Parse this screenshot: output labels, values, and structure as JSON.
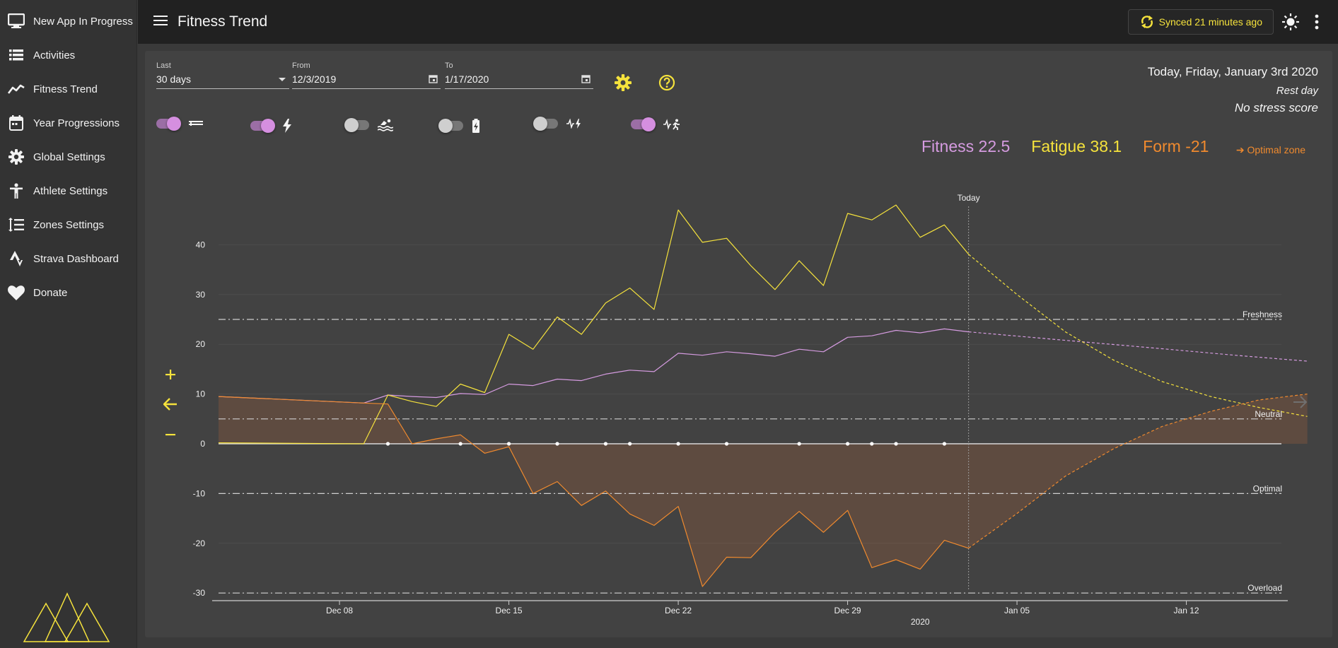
{
  "sidebar": {
    "items": [
      {
        "label": "New App In Progress",
        "icon": "monitor-icon"
      },
      {
        "label": "Activities",
        "icon": "list-icon"
      },
      {
        "label": "Fitness Trend",
        "icon": "trending-line-icon"
      },
      {
        "label": "Year Progressions",
        "icon": "calendar-icon"
      },
      {
        "label": "Global Settings",
        "icon": "gear-icon"
      },
      {
        "label": "Athlete Settings",
        "icon": "person-icon"
      },
      {
        "label": "Zones Settings",
        "icon": "zones-icon"
      },
      {
        "label": "Strava Dashboard",
        "icon": "strava-icon"
      },
      {
        "label": "Donate",
        "icon": "heart-icon"
      }
    ]
  },
  "header": {
    "title": "Fitness Trend",
    "sync_label": "Synced 21 minutes ago"
  },
  "filters": {
    "last_label": "Last",
    "last_value": "30 days",
    "from_label": "From",
    "from_value": "12/3/2019",
    "to_label": "To",
    "to_value": "1/17/2020"
  },
  "toggles": [
    {
      "name": "training-zones",
      "on": true,
      "icon": "zones-bars-icon"
    },
    {
      "name": "power-meter",
      "on": true,
      "icon": "lightning-icon"
    },
    {
      "name": "swim-stress",
      "on": false,
      "icon": "swim-icon"
    },
    {
      "name": "eleventh-hour",
      "on": false,
      "icon": "battery-bolt-icon"
    },
    {
      "name": "est-power",
      "on": false,
      "icon": "heart-rate-bolt-icon"
    },
    {
      "name": "est-running",
      "on": true,
      "icon": "heart-rate-runner-icon"
    }
  ],
  "status": {
    "today": "Today, Friday, January 3rd 2020",
    "rest_day": "Rest day",
    "stress": "No stress score"
  },
  "metrics": {
    "fitness": "Fitness 22.5",
    "fatigue": "Fatigue 38.1",
    "form": "Form -21",
    "optimal_zone": "➔ Optimal zone"
  },
  "colors": {
    "fitness": "#d59be0",
    "fatigue": "#f5e23c",
    "form": "#f08a2e",
    "accent": "#f5e23c"
  },
  "chart_data": {
    "type": "line",
    "title": "",
    "xlabel": "2020",
    "ylabel": "",
    "ylim": [
      -30,
      50
    ],
    "y_ticks": [
      40,
      30,
      20,
      10,
      0,
      -10,
      -20,
      -30
    ],
    "x_ticks": [
      {
        "date": "2019-12-08",
        "label": "Dec 08"
      },
      {
        "date": "2019-12-15",
        "label": "Dec 15"
      },
      {
        "date": "2019-12-22",
        "label": "Dec 22"
      },
      {
        "date": "2019-12-29",
        "label": "Dec 29"
      },
      {
        "date": "2020-01-05",
        "label": "Jan 05"
      },
      {
        "date": "2020-01-12",
        "label": "Jan 12"
      }
    ],
    "x_range": [
      "2019-12-03",
      "2020-01-17"
    ],
    "today_date": "2020-01-03",
    "today_label": "Today",
    "zones": [
      {
        "label": "Freshness",
        "value": 25
      },
      {
        "label": "Neutral",
        "value": 5
      },
      {
        "label": "Optimal",
        "value": -10
      },
      {
        "label": "Overload",
        "value": -30
      }
    ],
    "activity_days": [
      "2019-12-10",
      "2019-12-13",
      "2019-12-15",
      "2019-12-17",
      "2019-12-19",
      "2019-12-20",
      "2019-12-22",
      "2019-12-24",
      "2019-12-27",
      "2019-12-29",
      "2019-12-30",
      "2019-12-31",
      "2020-01-02"
    ],
    "series": [
      {
        "name": "Fitness",
        "color": "#d59be0",
        "points": [
          [
            "2019-12-03",
            9.5
          ],
          [
            "2019-12-09",
            8.2
          ],
          [
            "2019-12-10",
            9.8
          ],
          [
            "2019-12-11",
            9.5
          ],
          [
            "2019-12-12",
            9.3
          ],
          [
            "2019-12-13",
            10.1
          ],
          [
            "2019-12-14",
            9.9
          ],
          [
            "2019-12-15",
            12.0
          ],
          [
            "2019-12-16",
            11.7
          ],
          [
            "2019-12-17",
            13.0
          ],
          [
            "2019-12-18",
            12.7
          ],
          [
            "2019-12-19",
            14.0
          ],
          [
            "2019-12-20",
            14.8
          ],
          [
            "2019-12-21",
            14.5
          ],
          [
            "2019-12-22",
            18.2
          ],
          [
            "2019-12-23",
            17.8
          ],
          [
            "2019-12-24",
            18.5
          ],
          [
            "2019-12-25",
            18.1
          ],
          [
            "2019-12-26",
            17.6
          ],
          [
            "2019-12-27",
            19.0
          ],
          [
            "2019-12-28",
            18.5
          ],
          [
            "2019-12-29",
            21.4
          ],
          [
            "2019-12-30",
            21.7
          ],
          [
            "2019-12-31",
            22.8
          ],
          [
            "2020-01-01",
            22.3
          ],
          [
            "2020-01-02",
            23.1
          ],
          [
            "2020-01-03",
            22.5
          ]
        ],
        "projection": [
          [
            "2020-01-03",
            22.5
          ],
          [
            "2020-01-07",
            20.8
          ],
          [
            "2020-01-11",
            19.1
          ],
          [
            "2020-01-14",
            17.8
          ],
          [
            "2020-01-17",
            16.6
          ]
        ]
      },
      {
        "name": "Fatigue",
        "color": "#f5e23c",
        "points": [
          [
            "2019-12-03",
            0.2
          ],
          [
            "2019-12-09",
            0
          ],
          [
            "2019-12-10",
            9.8
          ],
          [
            "2019-12-11",
            8.5
          ],
          [
            "2019-12-12",
            7.5
          ],
          [
            "2019-12-13",
            12.0
          ],
          [
            "2019-12-14",
            10.3
          ],
          [
            "2019-12-15",
            22.0
          ],
          [
            "2019-12-16",
            19.0
          ],
          [
            "2019-12-17",
            25.5
          ],
          [
            "2019-12-18",
            22.0
          ],
          [
            "2019-12-19",
            28.3
          ],
          [
            "2019-12-20",
            31.3
          ],
          [
            "2019-12-21",
            27.0
          ],
          [
            "2019-12-22",
            47.0
          ],
          [
            "2019-12-23",
            40.5
          ],
          [
            "2019-12-24",
            41.3
          ],
          [
            "2019-12-25",
            35.8
          ],
          [
            "2019-12-26",
            31.0
          ],
          [
            "2019-12-27",
            36.8
          ],
          [
            "2019-12-28",
            31.8
          ],
          [
            "2019-12-29",
            46.3
          ],
          [
            "2019-12-30",
            45.0
          ],
          [
            "2019-12-31",
            48.0
          ],
          [
            "2020-01-01",
            41.5
          ],
          [
            "2020-01-02",
            44.0
          ],
          [
            "2020-01-03",
            38.1
          ]
        ],
        "projection": [
          [
            "2020-01-03",
            38.1
          ],
          [
            "2020-01-05",
            30.0
          ],
          [
            "2020-01-07",
            22.5
          ],
          [
            "2020-01-09",
            16.8
          ],
          [
            "2020-01-11",
            12.5
          ],
          [
            "2020-01-13",
            9.5
          ],
          [
            "2020-01-15",
            7.3
          ],
          [
            "2020-01-17",
            5.5
          ]
        ]
      },
      {
        "name": "Form",
        "color": "#f08a2e",
        "points": [
          [
            "2019-12-03",
            9.5
          ],
          [
            "2019-12-09",
            8.2
          ],
          [
            "2019-12-10",
            8.0
          ],
          [
            "2019-12-11",
            0
          ],
          [
            "2019-12-12",
            1.0
          ],
          [
            "2019-12-13",
            1.8
          ],
          [
            "2019-12-14",
            -1.9
          ],
          [
            "2019-12-15",
            -0.6
          ],
          [
            "2019-12-16",
            -10.0
          ],
          [
            "2019-12-17",
            -7.6
          ],
          [
            "2019-12-18",
            -12.4
          ],
          [
            "2019-12-19",
            -9.5
          ],
          [
            "2019-12-20",
            -14.1
          ],
          [
            "2019-12-21",
            -16.4
          ],
          [
            "2019-12-22",
            -12.6
          ],
          [
            "2019-12-23",
            -28.7
          ],
          [
            "2019-12-24",
            -22.8
          ],
          [
            "2019-12-25",
            -22.9
          ],
          [
            "2019-12-26",
            -17.8
          ],
          [
            "2019-12-27",
            -13.6
          ],
          [
            "2019-12-28",
            -17.8
          ],
          [
            "2019-12-29",
            -13.4
          ],
          [
            "2019-12-30",
            -24.9
          ],
          [
            "2019-12-31",
            -23.3
          ],
          [
            "2020-01-01",
            -25.2
          ],
          [
            "2020-01-02",
            -19.4
          ],
          [
            "2020-01-03",
            -21.0
          ]
        ],
        "projection": [
          [
            "2020-01-03",
            -21.0
          ],
          [
            "2020-01-05",
            -14.0
          ],
          [
            "2020-01-07",
            -6.5
          ],
          [
            "2020-01-09",
            -1.0
          ],
          [
            "2020-01-11",
            3.5
          ],
          [
            "2020-01-13",
            6.5
          ],
          [
            "2020-01-15",
            8.8
          ],
          [
            "2020-01-17",
            10.0
          ]
        ]
      }
    ]
  }
}
